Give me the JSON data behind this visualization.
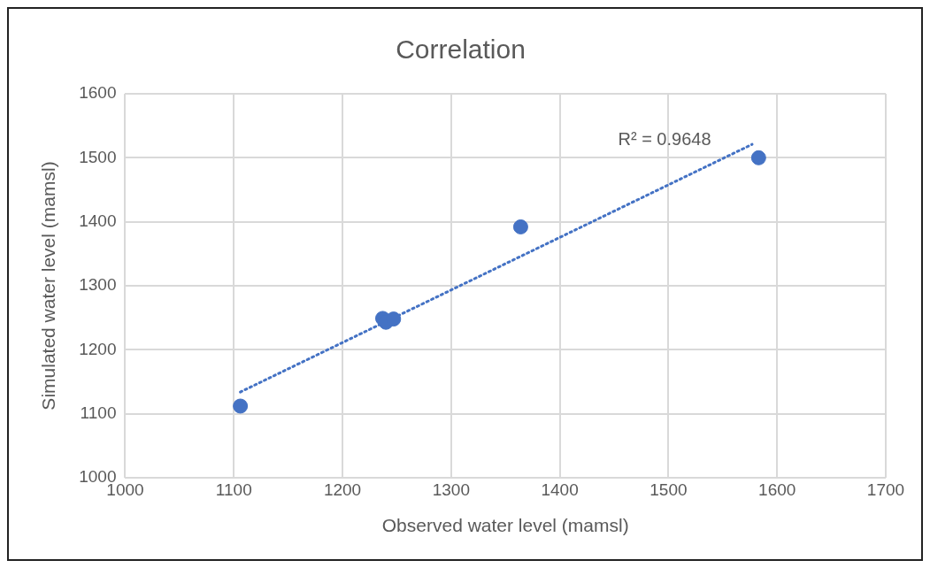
{
  "chart_data": {
    "type": "scatter",
    "title": "Correlation",
    "xlabel": "Observed water level (mamsl)",
    "ylabel": "Simulated water level (mamsl)",
    "xlim": [
      1000,
      1700
    ],
    "xticks": [
      1000,
      1100,
      1200,
      1300,
      1400,
      1500,
      1600,
      1700
    ],
    "ylim": [
      1000,
      1600
    ],
    "yticks": [
      1000,
      1100,
      1200,
      1300,
      1400,
      1500,
      1600
    ],
    "grid": true,
    "legend": false,
    "marker": "circle",
    "series": [
      {
        "color": "#4472c4",
        "x": [
          1106,
          1237,
          1240,
          1247,
          1364,
          1583
        ],
        "values": [
          1112,
          1249,
          1243,
          1248,
          1392,
          1500
        ]
      },
      {
        "type": "line",
        "color": "#4472c4",
        "line_style": "dotted",
        "marker": "none",
        "x": [
          1106,
          1577
        ],
        "values": [
          1134,
          1521
        ]
      }
    ],
    "annotations": [
      "R² = 0.9648"
    ]
  }
}
